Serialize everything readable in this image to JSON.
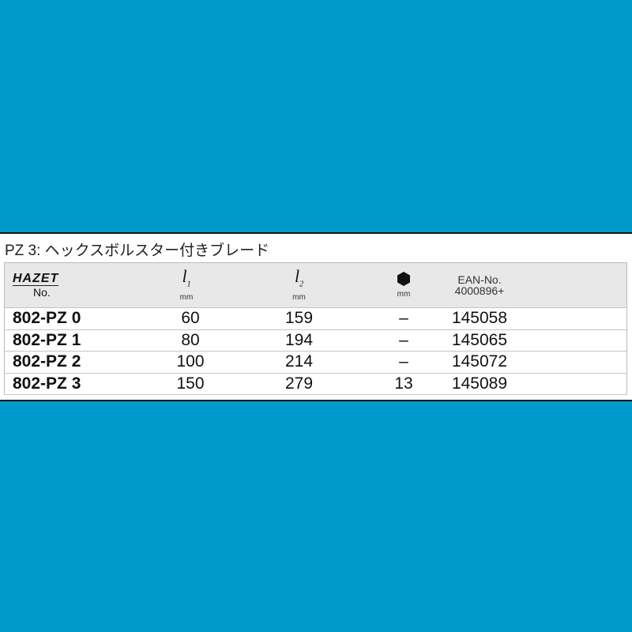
{
  "title": "PZ 3: ヘックスボルスター付きブレード",
  "header": {
    "brand": "HAZET",
    "no": "No.",
    "l1": "l",
    "l1_sub": "1",
    "l2": "l",
    "l2_sub": "2",
    "hex_icon": "hexagon-icon",
    "unit": "mm",
    "ean1": "EAN-No.",
    "ean2": "4000896+"
  },
  "rows": [
    {
      "no": "802-PZ 0",
      "l1": "60",
      "l2": "159",
      "hex": "–",
      "ean": "145058"
    },
    {
      "no": "802-PZ 1",
      "l1": "80",
      "l2": "194",
      "hex": "–",
      "ean": "145065"
    },
    {
      "no": "802-PZ 2",
      "l1": "100",
      "l2": "214",
      "hex": "–",
      "ean": "145072"
    },
    {
      "no": "802-PZ 3",
      "l1": "150",
      "l2": "279",
      "hex": "13",
      "ean": "145089"
    }
  ],
  "colors": {
    "background": "#0099cc",
    "header_bg": "#e8e8e8"
  }
}
